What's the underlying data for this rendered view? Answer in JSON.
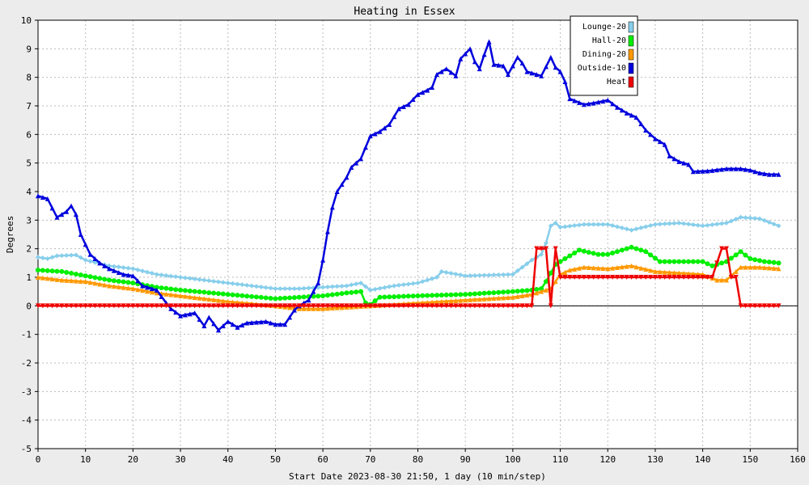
{
  "chart_data": {
    "type": "line",
    "title": "Heating in Essex",
    "xlabel": "Start Date 2023-08-30 21:50, 1 day (10 min/step)",
    "ylabel": "Degrees",
    "xlim": [
      0,
      160
    ],
    "ylim": [
      -5,
      10
    ],
    "x_ticks": [
      0,
      10,
      20,
      30,
      40,
      50,
      60,
      70,
      80,
      90,
      100,
      110,
      120,
      130,
      140,
      150,
      160
    ],
    "y_ticks": [
      -5,
      -4,
      -3,
      -2,
      -1,
      0,
      1,
      2,
      3,
      4,
      5,
      6,
      7,
      8,
      9,
      10
    ],
    "grid": true,
    "legend_position": "top-right",
    "series": [
      {
        "name": "Lounge-20",
        "color": "#87ceeb",
        "marker": "diamond",
        "points": [
          [
            0,
            1.7
          ],
          [
            2,
            1.65
          ],
          [
            4,
            1.75
          ],
          [
            8,
            1.78
          ],
          [
            10,
            1.6
          ],
          [
            15,
            1.4
          ],
          [
            20,
            1.3
          ],
          [
            25,
            1.1
          ],
          [
            30,
            1.0
          ],
          [
            40,
            0.8
          ],
          [
            50,
            0.6
          ],
          [
            55,
            0.6
          ],
          [
            60,
            0.65
          ],
          [
            65,
            0.7
          ],
          [
            68,
            0.8
          ],
          [
            70,
            0.55
          ],
          [
            75,
            0.7
          ],
          [
            80,
            0.8
          ],
          [
            84,
            1.0
          ],
          [
            85,
            1.2
          ],
          [
            90,
            1.05
          ],
          [
            100,
            1.1
          ],
          [
            104,
            1.6
          ],
          [
            106,
            1.8
          ],
          [
            107,
            2.2
          ],
          [
            108,
            2.8
          ],
          [
            109,
            2.9
          ],
          [
            110,
            2.75
          ],
          [
            115,
            2.85
          ],
          [
            120,
            2.85
          ],
          [
            125,
            2.65
          ],
          [
            130,
            2.85
          ],
          [
            135,
            2.9
          ],
          [
            140,
            2.8
          ],
          [
            145,
            2.9
          ],
          [
            148,
            3.1
          ],
          [
            152,
            3.05
          ],
          [
            156,
            2.8
          ]
        ]
      },
      {
        "name": "Hall-20",
        "color": "#00ee00",
        "marker": "circle",
        "points": [
          [
            0,
            1.25
          ],
          [
            5,
            1.2
          ],
          [
            10,
            1.05
          ],
          [
            15,
            0.9
          ],
          [
            20,
            0.8
          ],
          [
            25,
            0.65
          ],
          [
            30,
            0.55
          ],
          [
            40,
            0.4
          ],
          [
            50,
            0.25
          ],
          [
            55,
            0.3
          ],
          [
            60,
            0.35
          ],
          [
            65,
            0.45
          ],
          [
            68,
            0.5
          ],
          [
            69,
            0.1
          ],
          [
            70,
            0.05
          ],
          [
            72,
            0.3
          ],
          [
            80,
            0.35
          ],
          [
            90,
            0.4
          ],
          [
            100,
            0.5
          ],
          [
            104,
            0.55
          ],
          [
            106,
            0.6
          ],
          [
            107,
            0.85
          ],
          [
            109,
            1.45
          ],
          [
            112,
            1.75
          ],
          [
            114,
            1.95
          ],
          [
            118,
            1.8
          ],
          [
            120,
            1.8
          ],
          [
            125,
            2.05
          ],
          [
            128,
            1.9
          ],
          [
            131,
            1.55
          ],
          [
            135,
            1.55
          ],
          [
            140,
            1.55
          ],
          [
            142,
            1.4
          ],
          [
            145,
            1.55
          ],
          [
            148,
            1.9
          ],
          [
            150,
            1.65
          ],
          [
            153,
            1.55
          ],
          [
            156,
            1.5
          ]
        ]
      },
      {
        "name": "Dining-20",
        "color": "#ff9900",
        "marker": "triangle-up",
        "points": [
          [
            0,
            1.0
          ],
          [
            5,
            0.9
          ],
          [
            10,
            0.85
          ],
          [
            15,
            0.7
          ],
          [
            20,
            0.6
          ],
          [
            25,
            0.45
          ],
          [
            30,
            0.35
          ],
          [
            40,
            0.15
          ],
          [
            50,
            0.0
          ],
          [
            55,
            -0.1
          ],
          [
            60,
            -0.1
          ],
          [
            65,
            -0.05
          ],
          [
            70,
            0.0
          ],
          [
            75,
            0.05
          ],
          [
            80,
            0.1
          ],
          [
            90,
            0.2
          ],
          [
            100,
            0.3
          ],
          [
            104,
            0.4
          ],
          [
            106,
            0.5
          ],
          [
            108,
            0.6
          ],
          [
            110,
            1.1
          ],
          [
            112,
            1.25
          ],
          [
            115,
            1.35
          ],
          [
            120,
            1.3
          ],
          [
            125,
            1.4
          ],
          [
            130,
            1.2
          ],
          [
            135,
            1.15
          ],
          [
            140,
            1.1
          ],
          [
            143,
            0.9
          ],
          [
            145,
            0.9
          ],
          [
            148,
            1.35
          ],
          [
            152,
            1.35
          ],
          [
            156,
            1.3
          ]
        ]
      },
      {
        "name": "Outside-10",
        "color": "#0000dd",
        "marker": "triangle-up",
        "points": [
          [
            0,
            3.85
          ],
          [
            2,
            3.75
          ],
          [
            4,
            3.1
          ],
          [
            6,
            3.3
          ],
          [
            7,
            3.5
          ],
          [
            8,
            3.2
          ],
          [
            9,
            2.5
          ],
          [
            11,
            1.8
          ],
          [
            13,
            1.5
          ],
          [
            15,
            1.3
          ],
          [
            18,
            1.1
          ],
          [
            20,
            1.05
          ],
          [
            22,
            0.7
          ],
          [
            25,
            0.55
          ],
          [
            27,
            0.1
          ],
          [
            28,
            -0.1
          ],
          [
            30,
            -0.35
          ],
          [
            33,
            -0.25
          ],
          [
            35,
            -0.7
          ],
          [
            36,
            -0.4
          ],
          [
            38,
            -0.85
          ],
          [
            40,
            -0.55
          ],
          [
            42,
            -0.75
          ],
          [
            44,
            -0.6
          ],
          [
            48,
            -0.55
          ],
          [
            50,
            -0.65
          ],
          [
            52,
            -0.65
          ],
          [
            54,
            -0.15
          ],
          [
            55,
            0.0
          ],
          [
            57,
            0.2
          ],
          [
            59,
            0.8
          ],
          [
            60,
            1.6
          ],
          [
            61,
            2.6
          ],
          [
            62,
            3.45
          ],
          [
            63,
            4.0
          ],
          [
            65,
            4.5
          ],
          [
            66,
            4.85
          ],
          [
            68,
            5.15
          ],
          [
            70,
            5.95
          ],
          [
            72,
            6.1
          ],
          [
            74,
            6.35
          ],
          [
            76,
            6.9
          ],
          [
            78,
            7.05
          ],
          [
            80,
            7.4
          ],
          [
            82,
            7.55
          ],
          [
            83,
            7.65
          ],
          [
            84,
            8.1
          ],
          [
            86,
            8.3
          ],
          [
            88,
            8.05
          ],
          [
            89,
            8.65
          ],
          [
            91,
            9.0
          ],
          [
            92,
            8.55
          ],
          [
            93,
            8.3
          ],
          [
            94,
            8.8
          ],
          [
            95,
            9.25
          ],
          [
            96,
            8.45
          ],
          [
            98,
            8.4
          ],
          [
            99,
            8.1
          ],
          [
            101,
            8.7
          ],
          [
            102,
            8.5
          ],
          [
            103,
            8.2
          ],
          [
            105,
            8.1
          ],
          [
            106,
            8.05
          ],
          [
            108,
            8.7
          ],
          [
            109,
            8.35
          ],
          [
            110,
            8.2
          ],
          [
            111,
            7.85
          ],
          [
            112,
            7.25
          ],
          [
            115,
            7.05
          ],
          [
            117,
            7.1
          ],
          [
            120,
            7.2
          ],
          [
            122,
            6.95
          ],
          [
            124,
            6.75
          ],
          [
            126,
            6.6
          ],
          [
            128,
            6.15
          ],
          [
            130,
            5.85
          ],
          [
            132,
            5.65
          ],
          [
            133,
            5.25
          ],
          [
            135,
            5.05
          ],
          [
            137,
            4.95
          ],
          [
            138,
            4.7
          ],
          [
            141,
            4.72
          ],
          [
            145,
            4.8
          ],
          [
            148,
            4.8
          ],
          [
            150,
            4.75
          ],
          [
            152,
            4.65
          ],
          [
            154,
            4.6
          ],
          [
            156,
            4.6
          ]
        ]
      },
      {
        "name": "Heat",
        "color": "#ee0000",
        "marker": "triangle-down",
        "points": [
          [
            0,
            0
          ],
          [
            104,
            0
          ],
          [
            105,
            2
          ],
          [
            107,
            2
          ],
          [
            108,
            0
          ],
          [
            109,
            2
          ],
          [
            110,
            1
          ],
          [
            142,
            1
          ],
          [
            144,
            2
          ],
          [
            145,
            2
          ],
          [
            146,
            1
          ],
          [
            147,
            1
          ],
          [
            148,
            0
          ],
          [
            156,
            0
          ]
        ]
      }
    ]
  }
}
